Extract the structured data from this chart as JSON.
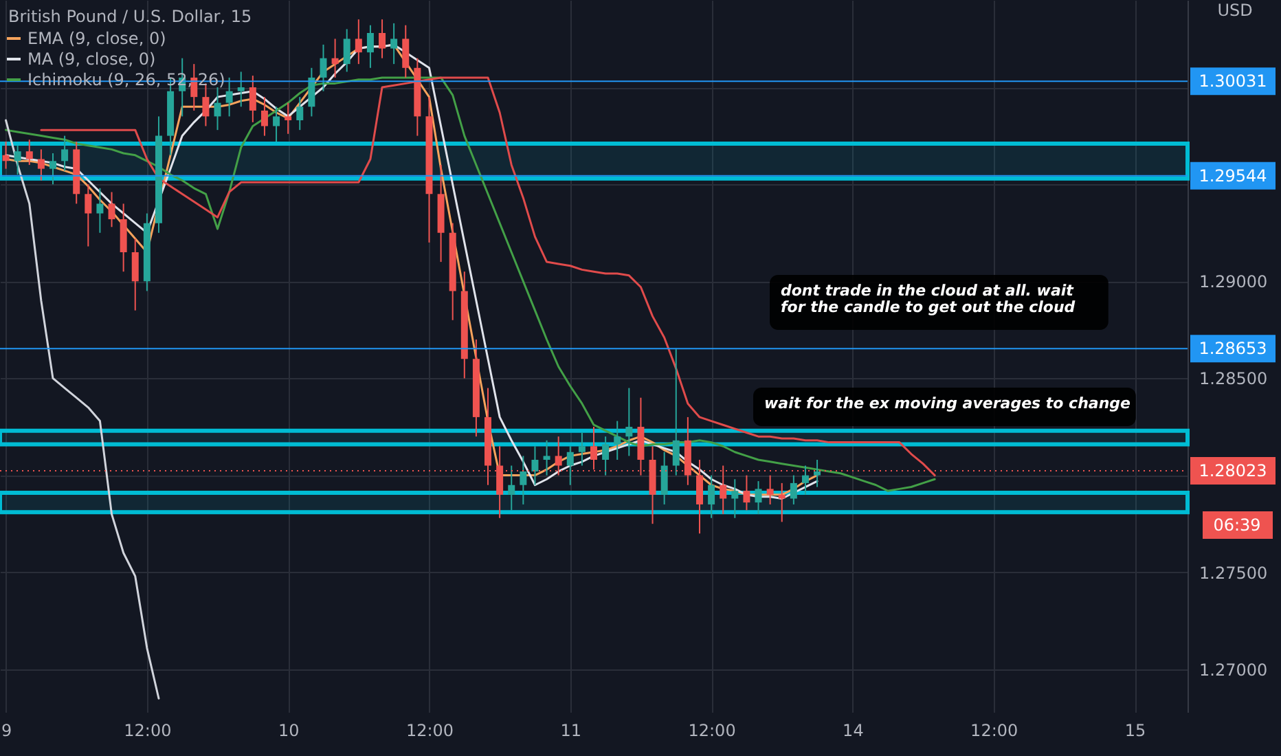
{
  "chart_data": {
    "type": "candlestick",
    "title": "British Pound / U.S. Dollar, 15",
    "ylabel": "USD",
    "categories": [
      "9",
      null,
      null,
      null,
      null,
      null,
      null,
      null,
      null,
      null,
      null,
      null,
      "12:00",
      null,
      null,
      null,
      null,
      null,
      null,
      null,
      null,
      null,
      null,
      null,
      "10",
      null,
      null,
      null,
      null,
      null,
      null,
      null,
      null,
      null,
      null,
      null,
      "12:00",
      null,
      null,
      null,
      null,
      null,
      null,
      null,
      null,
      null,
      null,
      null,
      "11",
      null,
      null,
      null,
      null,
      null,
      null,
      null,
      null,
      null,
      null,
      null,
      "12:00",
      null,
      null,
      null,
      null,
      null,
      null,
      null,
      null,
      null,
      null,
      null,
      "14",
      null,
      null,
      null,
      null,
      null,
      null,
      null,
      null,
      null,
      null,
      null,
      "12:00",
      null,
      null,
      null,
      null,
      null,
      null,
      null,
      null,
      null,
      null,
      null,
      "15",
      null,
      null,
      null,
      null
    ],
    "ohlc": [
      [
        1.2965,
        1.2972,
        1.2958,
        1.2962
      ],
      [
        1.2962,
        1.297,
        1.2955,
        1.2967
      ],
      [
        1.2967,
        1.2973,
        1.296,
        1.2963
      ],
      [
        1.2963,
        1.2968,
        1.2952,
        1.2958
      ],
      [
        1.2958,
        1.2966,
        1.295,
        1.2962
      ],
      [
        1.2962,
        1.2975,
        1.2957,
        1.2968
      ],
      [
        1.2968,
        1.2972,
        1.294,
        1.2945
      ],
      [
        1.2945,
        1.295,
        1.2918,
        1.2935
      ],
      [
        1.2935,
        1.2948,
        1.2925,
        1.294
      ],
      [
        1.294,
        1.2946,
        1.2928,
        1.2932
      ],
      [
        1.2932,
        1.294,
        1.2905,
        1.2915
      ],
      [
        1.2915,
        1.2922,
        1.2885,
        1.29
      ],
      [
        1.29,
        1.2935,
        1.2895,
        1.293
      ],
      [
        1.293,
        1.2985,
        1.2925,
        1.2975
      ],
      [
        1.2975,
        1.3005,
        1.2965,
        1.2998
      ],
      [
        1.2998,
        1.3015,
        1.2985,
        1.3005
      ],
      [
        1.3005,
        1.3012,
        1.2988,
        1.2995
      ],
      [
        1.2995,
        1.3002,
        1.298,
        1.2985
      ],
      [
        1.2985,
        1.3,
        1.2978,
        1.2992
      ],
      [
        1.2992,
        1.3005,
        1.2985,
        1.2998
      ],
      [
        1.2998,
        1.3008,
        1.299,
        1.3
      ],
      [
        1.3,
        1.3006,
        1.2982,
        1.2988
      ],
      [
        1.2988,
        1.2995,
        1.2975,
        1.298
      ],
      [
        1.298,
        1.299,
        1.2972,
        1.2985
      ],
      [
        1.2985,
        1.2992,
        1.2976,
        1.2983
      ],
      [
        1.2983,
        1.2995,
        1.2978,
        1.299
      ],
      [
        1.299,
        1.301,
        1.2985,
        1.3005
      ],
      [
        1.3005,
        1.3022,
        1.2998,
        1.3015
      ],
      [
        1.3015,
        1.3025,
        1.3005,
        1.3012
      ],
      [
        1.3012,
        1.303,
        1.3008,
        1.3025
      ],
      [
        1.3025,
        1.3035,
        1.3012,
        1.3018
      ],
      [
        1.3018,
        1.3032,
        1.301,
        1.3028
      ],
      [
        1.3028,
        1.3035,
        1.3015,
        1.302
      ],
      [
        1.302,
        1.3033,
        1.3012,
        1.3025
      ],
      [
        1.3025,
        1.3032,
        1.3005,
        1.301
      ],
      [
        1.301,
        1.3015,
        1.2975,
        1.2985
      ],
      [
        1.2985,
        1.2995,
        1.292,
        1.2945
      ],
      [
        1.2945,
        1.296,
        1.291,
        1.2925
      ],
      [
        1.2925,
        1.293,
        1.288,
        1.2895
      ],
      [
        1.2895,
        1.2905,
        1.285,
        1.286
      ],
      [
        1.286,
        1.287,
        1.282,
        1.283
      ],
      [
        1.283,
        1.2845,
        1.2795,
        1.2805
      ],
      [
        1.2805,
        1.2815,
        1.2778,
        1.279
      ],
      [
        1.279,
        1.2805,
        1.2782,
        1.2795
      ],
      [
        1.2795,
        1.281,
        1.2785,
        1.2802
      ],
      [
        1.2802,
        1.2815,
        1.2795,
        1.2808
      ],
      [
        1.2808,
        1.2818,
        1.28,
        1.281
      ],
      [
        1.281,
        1.282,
        1.28,
        1.2805
      ],
      [
        1.2805,
        1.2815,
        1.2795,
        1.2812
      ],
      [
        1.2812,
        1.2822,
        1.2805,
        1.2815
      ],
      [
        1.2815,
        1.2825,
        1.2803,
        1.2808
      ],
      [
        1.2808,
        1.282,
        1.28,
        1.2816
      ],
      [
        1.2816,
        1.2828,
        1.2808,
        1.282
      ],
      [
        1.282,
        1.2845,
        1.281,
        1.2825
      ],
      [
        1.2825,
        1.284,
        1.28,
        1.2808
      ],
      [
        1.2808,
        1.2815,
        1.2775,
        1.279
      ],
      [
        1.279,
        1.2812,
        1.2785,
        1.2805
      ],
      [
        1.2805,
        1.2865,
        1.28,
        1.2818
      ],
      [
        1.2818,
        1.283,
        1.2795,
        1.28
      ],
      [
        1.28,
        1.2808,
        1.277,
        1.2785
      ],
      [
        1.2785,
        1.28,
        1.2778,
        1.2795
      ],
      [
        1.2795,
        1.2805,
        1.278,
        1.2788
      ],
      [
        1.2788,
        1.2798,
        1.2778,
        1.2792
      ],
      [
        1.2792,
        1.28,
        1.2782,
        1.2786
      ],
      [
        1.2786,
        1.2797,
        1.278,
        1.2793
      ],
      [
        1.2793,
        1.28,
        1.2785,
        1.279
      ],
      [
        1.279,
        1.2796,
        1.2776,
        1.2788
      ],
      [
        1.2788,
        1.28,
        1.2785,
        1.2796
      ],
      [
        1.2796,
        1.2805,
        1.279,
        1.28
      ],
      [
        1.28,
        1.2808,
        1.2794,
        1.2802
      ],
      null,
      null,
      null,
      null,
      null,
      null,
      null,
      null,
      null,
      null,
      null,
      null,
      null,
      null,
      null,
      null,
      null,
      null,
      null,
      null,
      null,
      null,
      null,
      null,
      null,
      null,
      null,
      null,
      null,
      null,
      null
    ],
    "series": [
      {
        "name": "EMA (9, close, 0)",
        "type": "line",
        "color": "#f7a35c",
        "values": [
          1.2963,
          1.2962,
          1.2962,
          1.2961,
          1.2959,
          1.2957,
          1.2955,
          1.2949,
          1.2942,
          1.2936,
          1.2929,
          1.2922,
          1.2915,
          null,
          1.2965,
          1.299,
          1.299,
          1.299,
          1.299,
          1.2991,
          1.2993,
          1.2994,
          1.2991,
          1.2987,
          1.2984,
          1.2992,
          1.3,
          1.3008,
          1.3012,
          1.3016,
          1.302,
          1.3021,
          1.3021,
          1.3022,
          1.3013,
          1.3004,
          1.2995,
          1.2958,
          null,
          null,
          null,
          1.2828,
          1.28,
          1.28,
          1.28,
          1.28,
          1.2803,
          1.2807,
          1.281,
          1.2811,
          1.2812,
          1.2813,
          1.2815,
          1.2818,
          1.282,
          1.2817,
          1.2813,
          1.281,
          1.2805,
          1.28,
          1.2795,
          1.2793,
          1.2792,
          1.279,
          1.279,
          1.279,
          1.279,
          1.2793,
          1.2797,
          1.28,
          null,
          null,
          null,
          null,
          null,
          null,
          null,
          null,
          null,
          null,
          null,
          null,
          null,
          null,
          null,
          null,
          null,
          null,
          null,
          null,
          null,
          null,
          null,
          null,
          null,
          null,
          null,
          null,
          null,
          null,
          null
        ]
      },
      {
        "name": "MA (9, close, 0)",
        "type": "line",
        "color": "#e0e3eb",
        "values": [
          1.2965,
          1.2964,
          1.2963,
          1.2962,
          1.2961,
          1.2959,
          1.2958,
          1.2952,
          1.2946,
          1.294,
          1.2935,
          1.293,
          1.2925,
          null,
          1.2958,
          1.2975,
          1.2982,
          1.2988,
          1.2995,
          1.2996,
          1.2997,
          1.2998,
          1.2994,
          1.2989,
          1.2985,
          1.299,
          1.2995,
          1.3,
          1.3007,
          1.3013,
          1.302,
          1.3021,
          1.3021,
          1.3022,
          1.3018,
          1.3014,
          1.301,
          1.298,
          1.295,
          1.292,
          1.289,
          1.286,
          1.283,
          1.2818,
          1.2807,
          1.2795,
          1.2798,
          1.2802,
          1.2805,
          1.2807,
          1.281,
          1.2812,
          1.2814,
          1.2816,
          1.2818,
          1.2816,
          1.2814,
          1.2812,
          1.2807,
          1.2803,
          1.2798,
          1.2795,
          1.2793,
          1.279,
          1.2789,
          1.2789,
          1.2788,
          1.2791,
          1.2794,
          1.2797,
          null,
          null,
          null,
          null,
          null,
          null,
          null,
          null,
          null,
          null,
          null,
          null,
          null,
          null,
          null,
          null,
          null,
          null,
          null,
          null,
          null,
          null,
          null,
          null,
          null,
          null,
          null,
          null,
          null,
          null,
          null
        ]
      },
      {
        "name": "Ichimoku (9, 26, 52, 26)",
        "type": "line",
        "color": "#43a047",
        "values": [
          1.2978,
          1.2977,
          1.2976,
          1.2975,
          1.2974,
          1.2973,
          1.2971,
          1.297,
          1.2969,
          1.2968,
          1.2966,
          1.2965,
          1.2962,
          1.2959,
          1.2955,
          1.2952,
          1.2948,
          1.2945,
          1.2927,
          1.2946,
          1.2969,
          1.298,
          1.2984,
          1.2988,
          1.2992,
          1.2997,
          1.3001,
          1.3002,
          1.3002,
          1.3003,
          1.3004,
          1.3004,
          1.3005,
          1.3005,
          1.3005,
          1.3005,
          1.3005,
          1.3005,
          1.2996,
          1.2975,
          1.296,
          1.2945,
          1.293,
          1.2915,
          1.29,
          1.2885,
          1.287,
          1.2856,
          1.2846,
          1.2837,
          1.2826,
          1.2823,
          1.282,
          1.2817,
          1.2815,
          1.2816,
          1.2816,
          1.2817,
          1.2817,
          1.2818,
          1.2817,
          1.2815,
          1.2812,
          1.281,
          1.2808,
          1.2807,
          1.2806,
          1.2805,
          1.2804,
          1.2803,
          1.2802,
          1.2801,
          1.2799,
          1.2797,
          1.2795,
          1.2792,
          1.2793,
          1.2794,
          1.2796,
          1.2798,
          null,
          null,
          null,
          null,
          null,
          null,
          null,
          null,
          null,
          null,
          null,
          null,
          null,
          null,
          null,
          null,
          null,
          null,
          null,
          null,
          null
        ]
      },
      {
        "type": "line",
        "color": "#e04b4b",
        "values": [
          null,
          null,
          null,
          1.2978,
          1.2978,
          1.2978,
          1.2978,
          1.2978,
          1.2978,
          1.2978,
          1.2978,
          1.2978,
          1.2963,
          1.2953,
          1.2949,
          1.2945,
          1.2941,
          1.2937,
          1.2933,
          1.2946,
          1.2951,
          1.2951,
          1.2951,
          1.2951,
          1.2951,
          1.2951,
          1.2951,
          1.2951,
          1.2951,
          1.2951,
          1.2951,
          1.2963,
          1.3,
          1.3001,
          1.3002,
          1.3003,
          1.3004,
          1.3005,
          1.3005,
          1.3005,
          1.3005,
          1.3005,
          1.2987,
          1.296,
          1.2943,
          1.2923,
          1.291,
          1.2909,
          1.2908,
          1.2906,
          1.2905,
          1.2904,
          1.2904,
          1.2903,
          1.2897,
          1.2882,
          1.2871,
          1.2855,
          1.2837,
          1.283,
          1.2828,
          1.2826,
          1.2824,
          1.2822,
          1.282,
          1.282,
          1.2819,
          1.2819,
          1.2818,
          1.2818,
          1.2817,
          1.2817,
          1.2817,
          1.2817,
          1.2817,
          1.2817,
          1.2817,
          1.2811,
          1.2806,
          1.28,
          null,
          null,
          null,
          null,
          null,
          null,
          null,
          null,
          null,
          null,
          null,
          null,
          null,
          null,
          null,
          null,
          null,
          null,
          null,
          null,
          null
        ]
      },
      {
        "type": "line",
        "color": "#d1d4dc",
        "values": [
          1.2983,
          1.296,
          1.294,
          1.289,
          1.285,
          1.2845,
          1.284,
          1.2835,
          1.2828,
          1.278,
          1.276,
          1.2748,
          1.2711,
          1.2685,
          null,
          null,
          null,
          null,
          null,
          null,
          null,
          null,
          null,
          null,
          null,
          null,
          null,
          null,
          null,
          null,
          null,
          null,
          null,
          null,
          null,
          null,
          null,
          null,
          null,
          null,
          null,
          null,
          null,
          null,
          null,
          null,
          null,
          null,
          null,
          null,
          null,
          null,
          null,
          null,
          null,
          null,
          null,
          null,
          null,
          null,
          null,
          null,
          null,
          null,
          null,
          null,
          null,
          null,
          null,
          null,
          null,
          null,
          null,
          null,
          null,
          null,
          null,
          null,
          null,
          null,
          null,
          null,
          null,
          null,
          null,
          null,
          null,
          null,
          null,
          null,
          null,
          null,
          null,
          null,
          null,
          null,
          null,
          null,
          null,
          null,
          null
        ]
      }
    ],
    "ylim": [
      1.2678,
      1.3045
    ],
    "yticks": [
      {
        "value": 1.27,
        "label": "1.27000"
      },
      {
        "value": 1.275,
        "label": "1.27500"
      },
      {
        "value": 1.28,
        "label": null
      },
      {
        "value": 1.285,
        "label": "1.28500"
      },
      {
        "value": 1.29,
        "label": "1.29000"
      },
      {
        "value": 1.295,
        "label": null
      },
      {
        "value": 1.3,
        "label": null
      }
    ],
    "ref_lines": [
      {
        "axis": "y",
        "value": 1.30031,
        "label": "1.30031",
        "color": "#2196f3"
      },
      {
        "axis": "y",
        "value": 1.29544,
        "label": "1.29544",
        "color": "#2196f3"
      },
      {
        "axis": "y",
        "value": 1.28653,
        "label": "1.28653",
        "color": "#2196f3"
      },
      {
        "axis": "y",
        "value": 1.28023,
        "label": "1.28023",
        "color": "#ef5350",
        "line_style": "dotted"
      }
    ],
    "bands": [
      {
        "axis": "y",
        "from": 1.2953,
        "to": 1.2971,
        "color": "#00bcd4"
      },
      {
        "axis": "y",
        "from": 1.2816,
        "to": 1.2823,
        "color": "#00bcd4"
      },
      {
        "axis": "y",
        "from": 1.2781,
        "to": 1.2791,
        "color": "#00bcd4"
      }
    ],
    "annotations": [
      "dont trade in the cloud at all. wait for the candle to get out the cloud",
      "wait for the ex moving averages to change",
      "06:39"
    ],
    "grid": true,
    "legend": "top left"
  }
}
